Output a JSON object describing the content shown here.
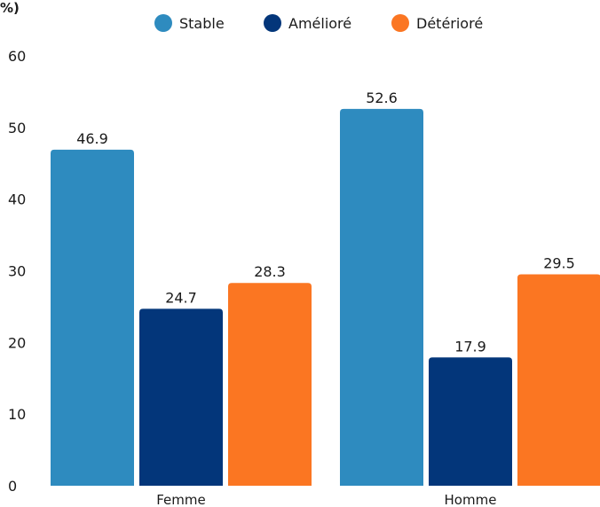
{
  "chart_data": {
    "type": "bar",
    "title": "",
    "unit_label": "%)",
    "xlabel": "",
    "ylabel": "",
    "categories": [
      "Femme",
      "Homme"
    ],
    "series": [
      {
        "name": "Stable",
        "color": "#2e8bbf",
        "values": [
          46.9,
          52.6
        ],
        "labels": [
          "46.9",
          "52.6"
        ]
      },
      {
        "name": "Amélioré",
        "color": "#03367a",
        "values": [
          24.7,
          17.9
        ],
        "labels": [
          "24.7",
          "17.9"
        ]
      },
      {
        "name": "Détérioré",
        "color": "#fb7622",
        "values": [
          28.3,
          29.5
        ],
        "labels": [
          "28.3",
          "29.5"
        ]
      }
    ],
    "ylim": [
      0,
      60
    ],
    "yticks": [
      "0",
      "10",
      "20",
      "30",
      "40",
      "50",
      "60"
    ],
    "grid": false,
    "legend": "top-center"
  }
}
